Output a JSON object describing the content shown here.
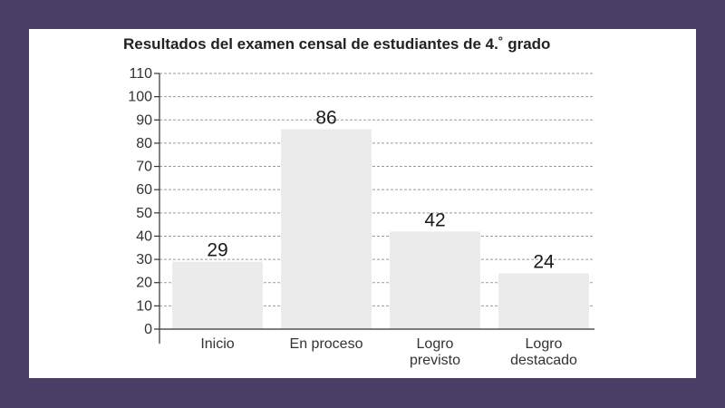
{
  "colors": {
    "frame": "#4a3d66",
    "card": "#ffffff",
    "bar": "#ebebeb",
    "grid": "#9a9a9a",
    "axis": "#333333",
    "text": "#222222"
  },
  "chart_data": {
    "type": "bar",
    "title": "Resultados del examen censal de estudiantes de 4.˚ grado",
    "xlabel": "",
    "ylabel": "",
    "categories": [
      [
        "Inicio"
      ],
      [
        "En proceso"
      ],
      [
        "Logro",
        "previsto"
      ],
      [
        "Logro",
        "destacado"
      ]
    ],
    "values": [
      29,
      86,
      42,
      24
    ],
    "ylim": [
      0,
      110
    ],
    "yticks": [
      0,
      10,
      20,
      30,
      40,
      50,
      60,
      70,
      80,
      90,
      100,
      110
    ],
    "grid": true,
    "grid_style": "dashed",
    "legend": "none"
  }
}
